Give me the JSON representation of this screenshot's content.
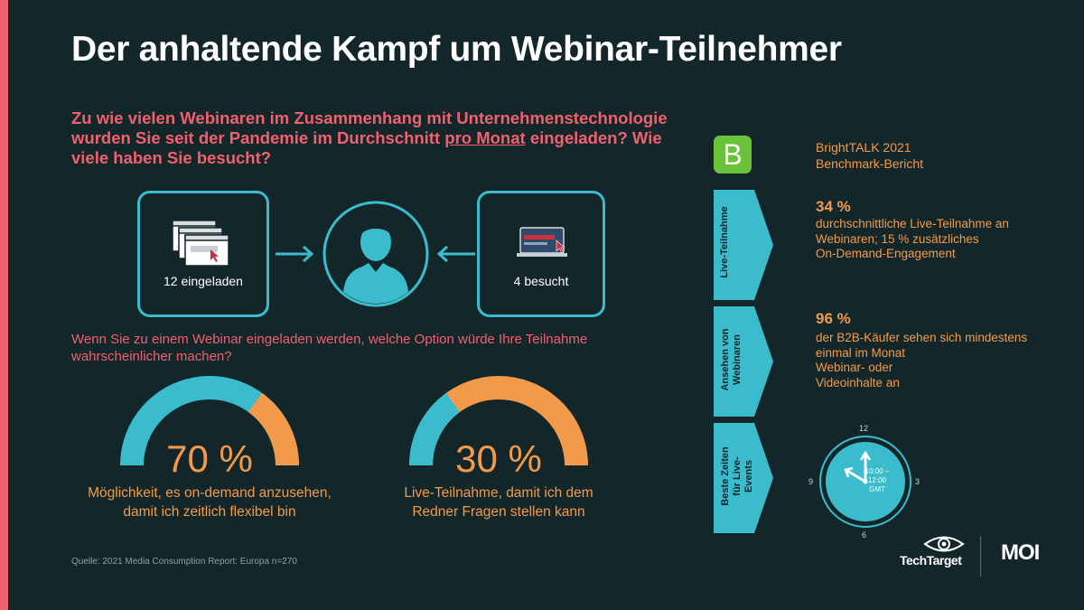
{
  "title": "Der anhaltende Kampf um Webinar-Teilnehmer",
  "question1": {
    "part1": "Zu wie vielen Webinaren im Zusammenhang mit Unternehmenstechnologie wurden Sie seit der Pandemie im Durchschnitt ",
    "underlined": "pro Monat",
    "part2": " eingeladen? Wie viele haben Sie besucht?"
  },
  "invited_label": "12 eingeladen",
  "attended_label": "4 besucht",
  "question2": "Wenn Sie zu einem Webinar eingeladen werden, welche Option würde Ihre Teilnahme wahrscheinlicher machen?",
  "gauge1": {
    "value": 70,
    "value_label": "70 %",
    "caption_line1": "Möglichkeit, es on-demand anzusehen,",
    "caption_line2": "damit ich zeitlich flexibel bin"
  },
  "gauge2": {
    "value": 30,
    "value_label": "30 %",
    "caption_line1": "Live-Teilnahme, damit ich dem",
    "caption_line2": "Redner Fragen stellen kann"
  },
  "source": "Quelle: 2021 Media Consumption Report: Europa n=270",
  "brighttalk": {
    "logo_letter": "B",
    "line1": "BrightTALK 2021",
    "line2": "Benchmark-Bericht"
  },
  "tabs": {
    "live": "Live-Teilnahme",
    "webinars_line1": "Ansehen von",
    "webinars_line2": "Webinaren",
    "times_line1": "Beste Zeiten",
    "times_line2": "für Live-",
    "times_line3": "Events"
  },
  "stat1": {
    "number": "34 %",
    "line1": "durchschnittliche Live-Teilnahme an",
    "line2": "Webinaren; 15 % zusätzliches",
    "line3": "On-Demand-Engagement"
  },
  "stat2": {
    "number": "96 %",
    "line1": "der B2B-Käufer sehen sich mindestens",
    "line2": "einmal im Monat",
    "line3": "Webinar- oder",
    "line4": "Videoinhalte an"
  },
  "clock": {
    "n12": "12",
    "n3": "3",
    "n6": "6",
    "n9": "9",
    "time_line1": "10:00 –",
    "time_line2": "12:00",
    "time_line3": "GMT"
  },
  "logos": {
    "techtarget": "TechTarget",
    "moi": "MOI"
  },
  "colors": {
    "background": "#13272a",
    "accent_pink": "#f0606e",
    "teal": "#3bbccc",
    "orange": "#f39a4a",
    "green": "#6ac238"
  }
}
